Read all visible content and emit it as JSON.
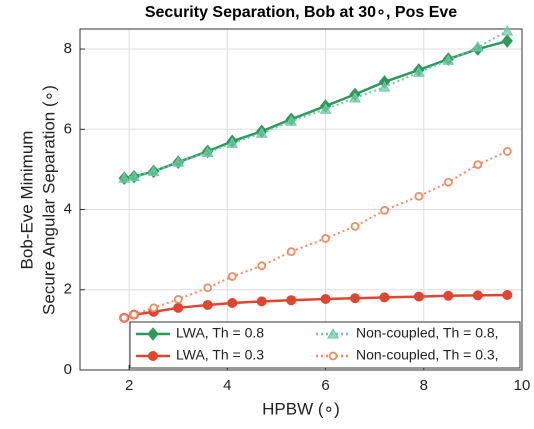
{
  "chart_data": {
    "type": "line",
    "title": "Security Separation, Bob at 30∘, Pos Eve",
    "xlabel": "HPBW (∘)",
    "ylabel": [
      "Bob-Eve Minimum",
      "Secure Angular Separation (∘)"
    ],
    "x": [
      1.9,
      2.1,
      2.5,
      3.0,
      3.6,
      4.1,
      4.7,
      5.3,
      6.0,
      6.6,
      7.2,
      7.9,
      8.5,
      9.1,
      9.7
    ],
    "series": [
      {
        "name": "LWA, Th = 0.8",
        "color": "#2e9a5a",
        "marker": "diamond",
        "dash": false,
        "values": [
          4.78,
          4.82,
          4.95,
          5.18,
          5.45,
          5.7,
          5.95,
          6.25,
          6.58,
          6.87,
          7.18,
          7.48,
          7.75,
          8.0,
          8.2
        ]
      },
      {
        "name": "Non-coupled, Th = 0.8,",
        "color": "#6cc9a4",
        "marker": "triangle",
        "dash": true,
        "values": [
          4.78,
          4.82,
          4.95,
          5.18,
          5.42,
          5.65,
          5.9,
          6.2,
          6.5,
          6.78,
          7.05,
          7.42,
          7.72,
          8.05,
          8.45
        ]
      },
      {
        "name": "LWA, Th = 0.3",
        "color": "#e0452f",
        "marker": "circle",
        "dash": false,
        "values": [
          1.3,
          1.38,
          1.45,
          1.55,
          1.62,
          1.67,
          1.71,
          1.74,
          1.77,
          1.79,
          1.81,
          1.83,
          1.85,
          1.86,
          1.87
        ]
      },
      {
        "name": "Non-coupled, Th = 0.3,",
        "color": "#f08a62",
        "marker": "ring",
        "dash": true,
        "values": [
          1.3,
          1.38,
          1.55,
          1.76,
          2.05,
          2.33,
          2.6,
          2.95,
          3.28,
          3.58,
          3.98,
          4.33,
          4.68,
          5.12,
          5.45
        ]
      }
    ],
    "xlim": [
      1,
      10
    ],
    "xticks": [
      2,
      4,
      6,
      8,
      10
    ],
    "ylim": [
      0,
      8.5
    ],
    "yticks": [
      0,
      2,
      4,
      6,
      8
    ],
    "grid": true,
    "legend": "lower right"
  }
}
